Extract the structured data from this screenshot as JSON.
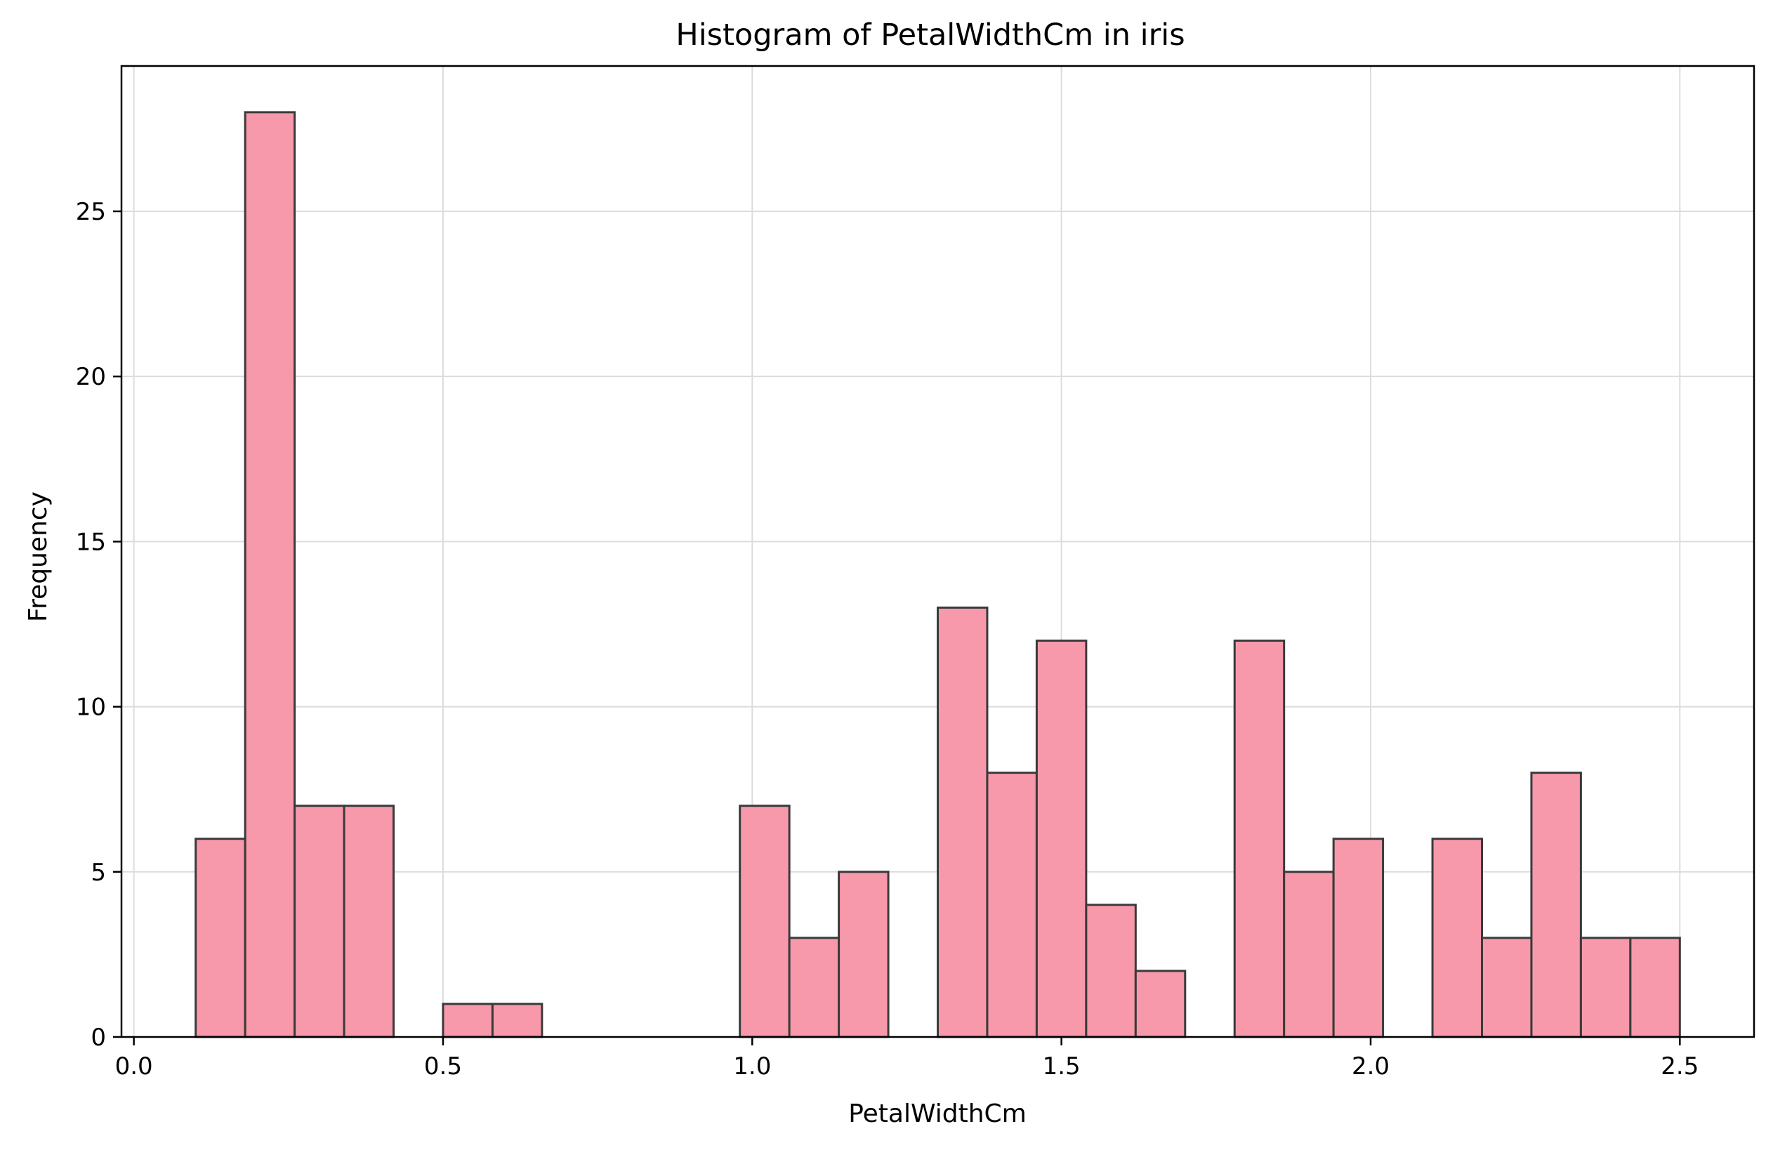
{
  "chart_data": {
    "type": "bar",
    "title": "Histogram of PetalWidthCm in iris",
    "xlabel": "PetalWidthCm",
    "ylabel": "Frequency",
    "xlim": [
      -0.02,
      2.62
    ],
    "ylim": [
      0,
      29.4
    ],
    "x_ticks": [
      0.0,
      0.5,
      1.0,
      1.5,
      2.0,
      2.5
    ],
    "x_tick_labels": [
      "0.0",
      "0.5",
      "1.0",
      "1.5",
      "2.0",
      "2.5"
    ],
    "y_ticks": [
      0,
      5,
      10,
      15,
      20,
      25
    ],
    "y_tick_labels": [
      "0",
      "5",
      "10",
      "15",
      "20",
      "25"
    ],
    "grid": true,
    "bin_edges": [
      0.1,
      0.18,
      0.26,
      0.34,
      0.42,
      0.5,
      0.58,
      0.66,
      0.74,
      0.82,
      0.9,
      0.98,
      1.06,
      1.14,
      1.22,
      1.3,
      1.38,
      1.46,
      1.54,
      1.62,
      1.7,
      1.78,
      1.86,
      1.94,
      2.02,
      2.1,
      2.18,
      2.26,
      2.34,
      2.42,
      2.5
    ],
    "values": [
      6,
      28,
      7,
      7,
      0,
      1,
      1,
      0,
      0,
      0,
      0,
      7,
      3,
      5,
      0,
      13,
      8,
      12,
      4,
      2,
      0,
      12,
      5,
      6,
      0,
      6,
      3,
      8,
      3,
      3
    ],
    "bar_color": "#f799ab",
    "edge_color": "#3a3a3a"
  }
}
